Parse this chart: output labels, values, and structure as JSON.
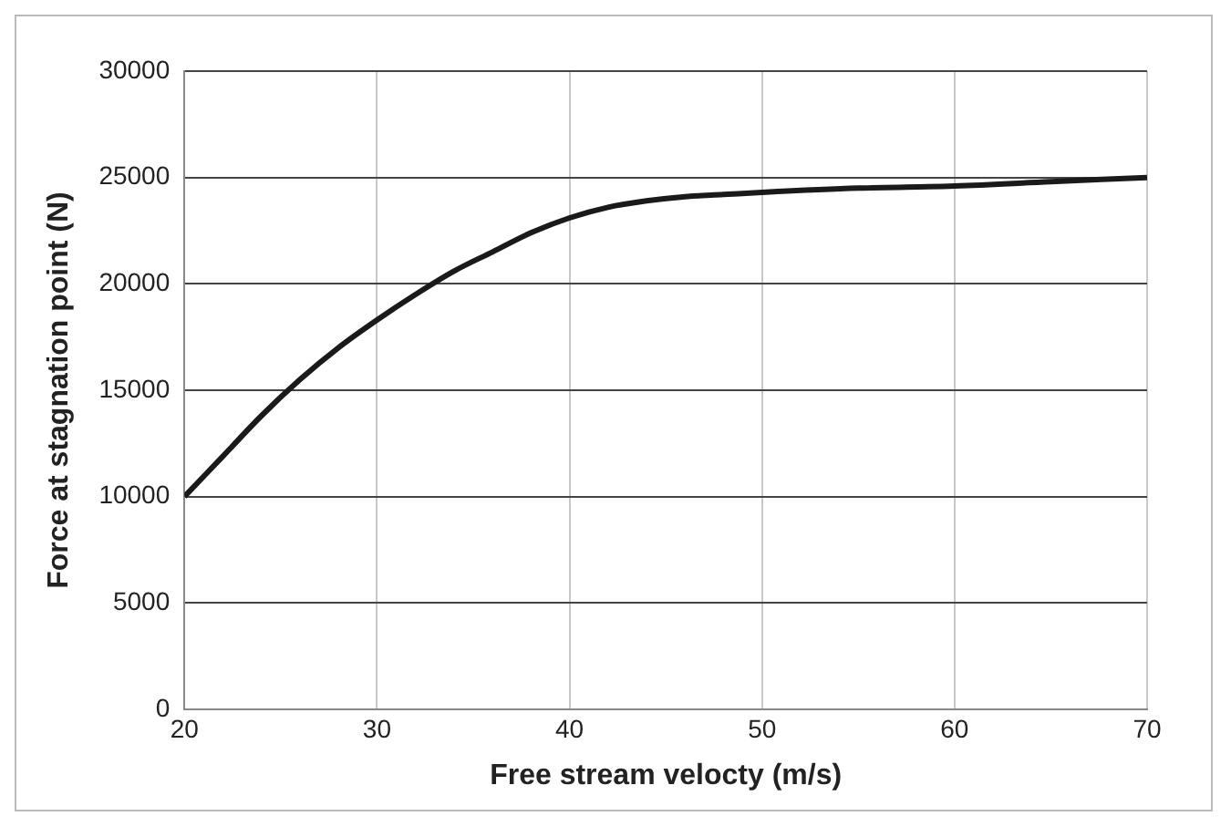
{
  "chart_data": {
    "type": "line",
    "xlabel": "Free stream velocty (m/s)",
    "ylabel": "Force at stagnation point (N)",
    "series": [
      {
        "color": "#1a1a1a",
        "x": [
          20,
          22,
          24,
          26,
          28,
          30,
          32,
          34,
          36,
          38,
          40,
          42,
          44,
          46,
          48,
          50,
          55,
          60,
          65,
          70
        ],
        "values": [
          10000,
          11900,
          13800,
          15500,
          17000,
          18300,
          19500,
          20600,
          21500,
          22400,
          23100,
          23600,
          23900,
          24100,
          24200,
          24300,
          24500,
          24600,
          24800,
          25000
        ]
      }
    ],
    "xlim": [
      20,
      70
    ],
    "xticks": [
      20,
      30,
      40,
      50,
      60,
      70
    ],
    "ylim": [
      0,
      30000
    ],
    "yticks": [
      0,
      5000,
      10000,
      15000,
      20000,
      25000,
      30000
    ],
    "grid": true,
    "marker": "none",
    "line_style": "solid",
    "legend": false
  }
}
